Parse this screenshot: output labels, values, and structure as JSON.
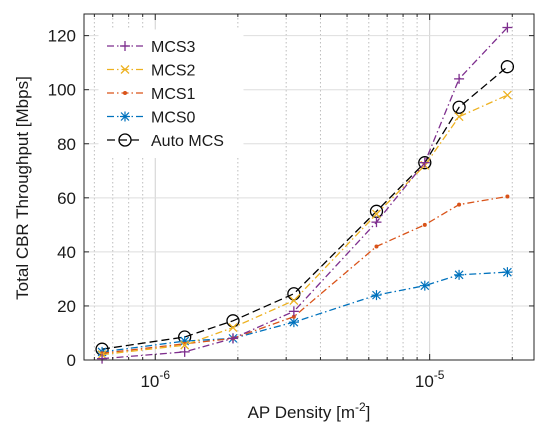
{
  "chart_data": {
    "type": "line",
    "xlabel": "AP Density [m",
    "xlabel_sup": "-2",
    "xlabel_end": "]",
    "ylabel": "Total CBR Throughput [Mbps]",
    "x_scale": "log",
    "xlim": [
      5.5e-07,
      2.4e-05
    ],
    "ylim": [
      0,
      128
    ],
    "x_tick_labels": [
      {
        "value": 1e-06,
        "base": "10",
        "exp": "-6"
      },
      {
        "value": 1e-05,
        "base": "10",
        "exp": "-5"
      }
    ],
    "y_ticks": [
      0,
      20,
      40,
      60,
      80,
      100,
      120
    ],
    "y_tick_labels": [
      "0",
      "20",
      "40",
      "60",
      "80",
      "100",
      "120"
    ],
    "grid": true,
    "legend_position": "top-left",
    "x": [
      6.4e-07,
      1.28e-06,
      1.92e-06,
      3.2e-06,
      6.4e-06,
      9.6e-06,
      1.28e-05,
      1.92e-05
    ],
    "series": [
      {
        "name": "MCS3",
        "color": "#7e2f8e",
        "marker": "plus",
        "dash": "dashdot",
        "values": [
          0.5,
          3,
          8,
          18,
          51,
          73,
          104,
          123
        ]
      },
      {
        "name": "MCS2",
        "color": "#edb120",
        "marker": "x",
        "dash": "dashdot",
        "values": [
          2,
          5.5,
          12,
          22,
          54,
          72,
          90,
          98
        ]
      },
      {
        "name": "MCS1",
        "color": "#d95319",
        "marker": "dot",
        "dash": "dashdot",
        "values": [
          2.5,
          6,
          8,
          16,
          42,
          50,
          57.5,
          60.5
        ]
      },
      {
        "name": "MCS0",
        "color": "#0072bd",
        "marker": "asterisk",
        "dash": "dashdot",
        "values": [
          3,
          7,
          8,
          14,
          24,
          27.5,
          31.5,
          32.5
        ]
      },
      {
        "name": "Auto MCS",
        "color": "#000000",
        "marker": "circle",
        "dash": "dashed",
        "values": [
          4,
          8.5,
          14.5,
          24.5,
          55,
          73,
          93.5,
          108.5
        ]
      }
    ]
  }
}
